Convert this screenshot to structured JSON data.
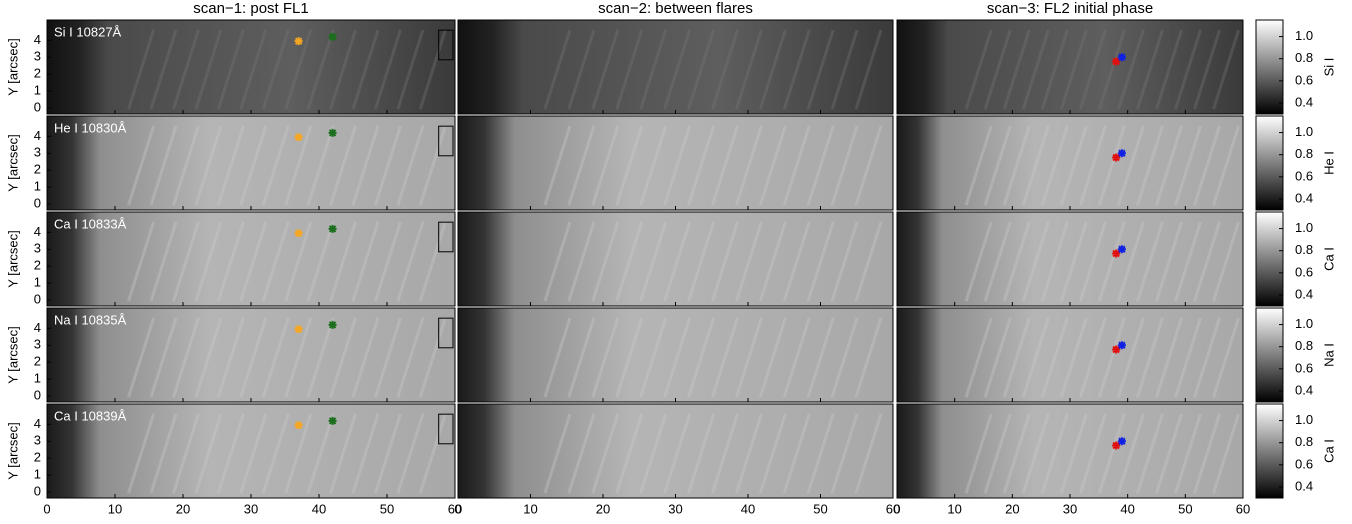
{
  "panels": {
    "columns": [
      {
        "title": "scan−1: post FL1",
        "markers": [
          {
            "x": 37,
            "y": 3.95,
            "color": "#f5a623"
          },
          {
            "x": 42,
            "y": 4.2,
            "color": "#1b6e1b"
          }
        ]
      },
      {
        "title": "scan−2: between flares",
        "markers": []
      },
      {
        "title": "scan−3: FL2 initial phase",
        "markers": [
          {
            "x": 38,
            "y": 2.75,
            "color": "#e01010"
          },
          {
            "x": 39,
            "y": 3.0,
            "color": "#1020e0"
          }
        ]
      }
    ],
    "rows": [
      {
        "line": "Si I 10827Å",
        "colorbar_label": "Si I"
      },
      {
        "line": "He I 10830Å",
        "colorbar_label": "He I"
      },
      {
        "line": "Ca I 10833Å",
        "colorbar_label": "Ca I"
      },
      {
        "line": "Na I 10835Å",
        "colorbar_label": "Na I"
      },
      {
        "line": "Ca I 10839Å",
        "colorbar_label": "Ca I"
      }
    ],
    "xlim": [
      0,
      60
    ],
    "xticks": [
      0,
      10,
      20,
      30,
      40,
      50,
      60
    ],
    "ylim": [
      -0.35,
      5.2
    ],
    "yticks": [
      0,
      1,
      2,
      3,
      4
    ],
    "ylabel": "Y [arcsec]",
    "cbar_lim": [
      0.3,
      1.15
    ],
    "cbar_ticks": [
      0.4,
      0.6,
      0.8,
      {
        "value": 1,
        "label": "1.0"
      }
    ]
  }
}
